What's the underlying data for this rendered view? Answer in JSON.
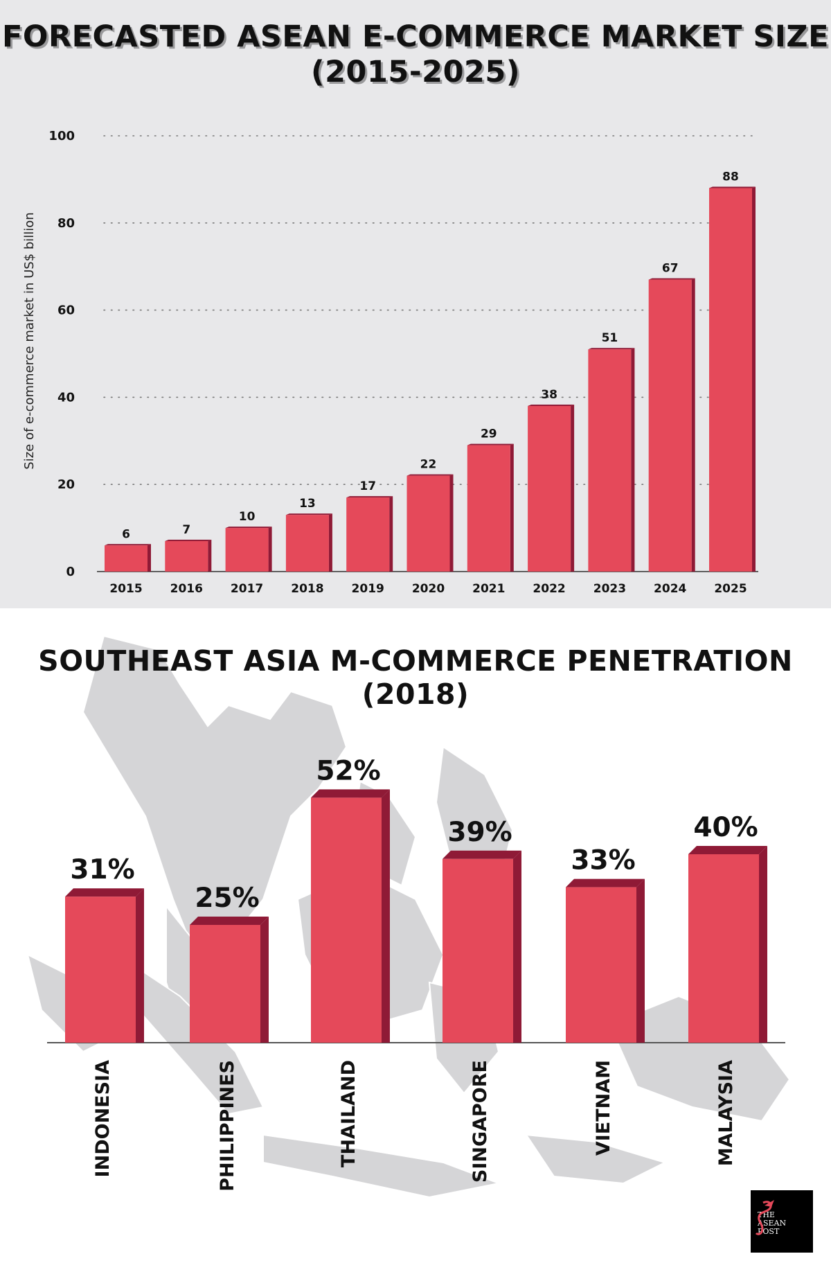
{
  "chart_data": [
    {
      "type": "bar",
      "title": "FORECASTED ASEAN E-COMMERCE MARKET SIZE (2015-2025)",
      "xlabel": "",
      "ylabel": "Size of e-commerce market in US$ billion",
      "categories": [
        "2015",
        "2016",
        "2017",
        "2018",
        "2019",
        "2020",
        "2021",
        "2022",
        "2023",
        "2024",
        "2025"
      ],
      "values": [
        6,
        7,
        10,
        13,
        17,
        22,
        29,
        38,
        51,
        67,
        88
      ],
      "ylim": [
        0,
        100
      ],
      "yticks": [
        0,
        20,
        40,
        60,
        80,
        100
      ],
      "grid": true,
      "bar_color": "#e5495a",
      "bar_shadow_color": "#8f1a36"
    },
    {
      "type": "bar",
      "title": "SOUTHEAST ASIA M-COMMERCE PENETRATION (2018)",
      "categories": [
        "INDONESIA",
        "PHILIPPINES",
        "THAILAND",
        "SINGAPORE",
        "VIETNAM",
        "MALAYSIA"
      ],
      "values": [
        31,
        25,
        52,
        39,
        33,
        40
      ],
      "value_suffix": "%",
      "bar_color": "#e5495a",
      "bar_shadow_color": "#8f1a36",
      "background": "map of Southeast Asia"
    }
  ],
  "logo": {
    "lines": [
      "THE",
      "ASEAN",
      "POST"
    ]
  },
  "colors": {
    "top_background": "#e8e8ea",
    "map_gray": "#d3d3d5"
  }
}
